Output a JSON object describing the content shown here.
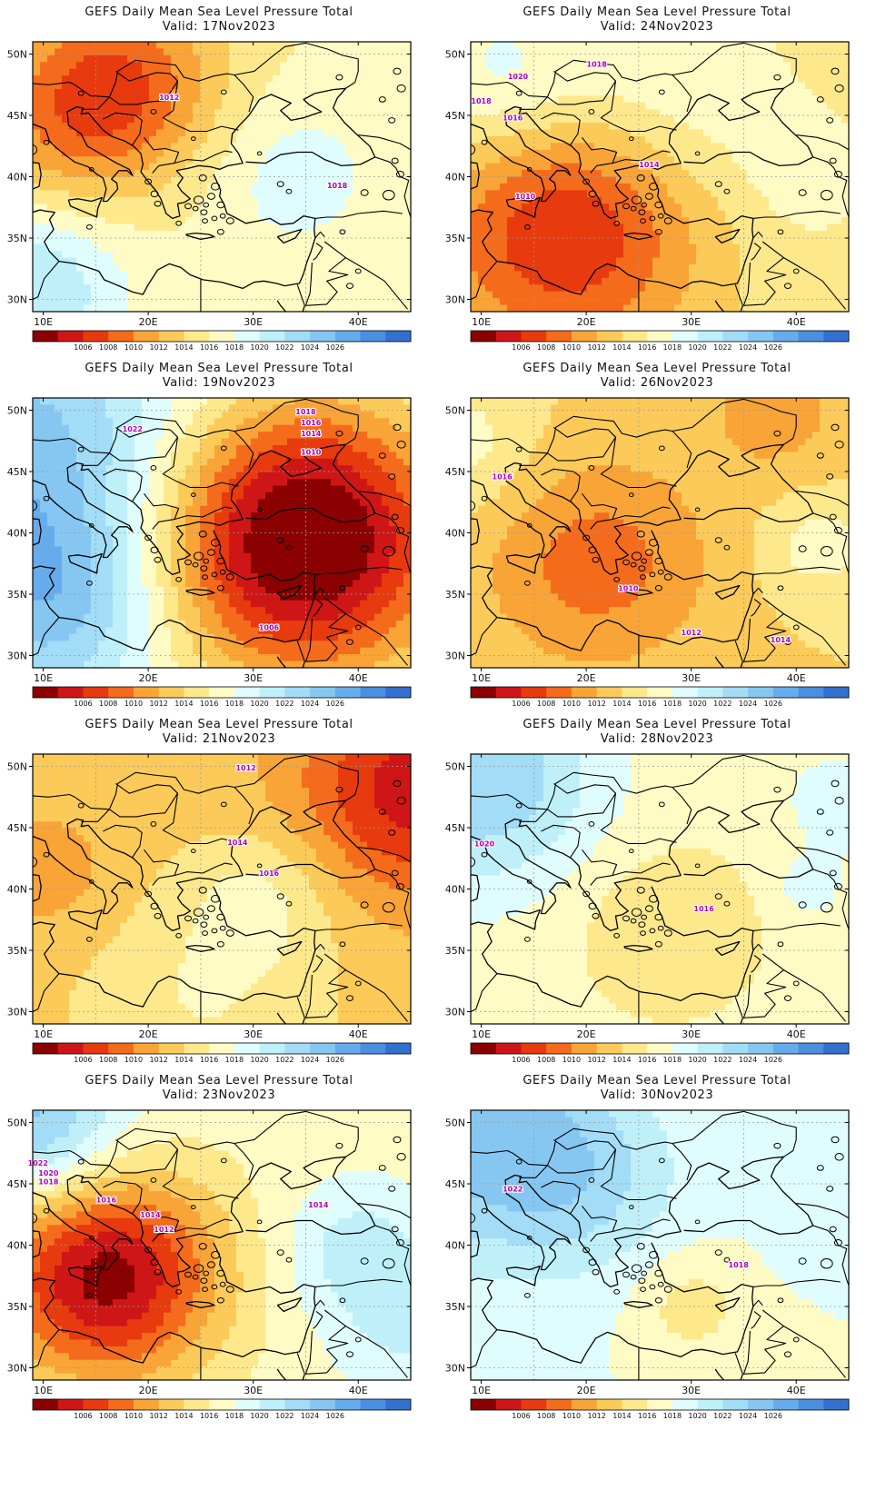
{
  "title": "GEFS Daily Mean Sea Level Pressure Total",
  "colors": {
    "bins": [
      "#8b0000",
      "#cf1616",
      "#e73a0e",
      "#f56b1c",
      "#f9a436",
      "#fbca58",
      "#fde88c",
      "#fffbc4",
      "#e0fdfd",
      "#bff0fa",
      "#a2dcf6",
      "#86c7f2",
      "#66aced",
      "#4a8fe0",
      "#3370d0"
    ],
    "contour": "#b020c0",
    "border": "#000000",
    "grid": "#9a9a9a"
  },
  "colorbar_ticks": [
    "1006",
    "1008",
    "1010",
    "1012",
    "1014",
    "1016",
    "1018",
    "1020",
    "1022",
    "1024",
    "1026"
  ],
  "lon_ticks": [
    "10E",
    "20E",
    "30E",
    "40E"
  ],
  "lat_ticks": [
    "50N",
    "45N",
    "40N",
    "35N",
    "30N"
  ],
  "panels": [
    {
      "valid": "Valid: 17Nov2023",
      "base": 1016,
      "features": [
        {
          "x": 17,
          "y": 47.5,
          "a": -8,
          "r": 5.5
        },
        {
          "x": 11,
          "y": 43.5,
          "a": -3,
          "r": 5
        },
        {
          "x": 9,
          "y": 31,
          "a": 6,
          "r": 5
        },
        {
          "x": 34,
          "y": 40,
          "a": 3,
          "r": 5
        }
      ],
      "labels": [
        {
          "text": "1012",
          "x": 22,
          "y": 46.5
        },
        {
          "text": "1018",
          "x": 38,
          "y": 39.3
        }
      ]
    },
    {
      "valid": "Valid: 24Nov2023",
      "base": 1015,
      "features": [
        {
          "x": 18,
          "y": 35.5,
          "a": -9,
          "r": 7
        },
        {
          "x": 12,
          "y": 48,
          "a": 4,
          "r": 5
        },
        {
          "x": 28,
          "y": 47,
          "a": 3,
          "r": 6
        },
        {
          "x": 41,
          "y": 40,
          "a": 2,
          "r": 4
        }
      ],
      "labels": [
        {
          "text": "1018",
          "x": 21,
          "y": 49.2
        },
        {
          "text": "1020",
          "x": 13.5,
          "y": 48.2
        },
        {
          "text": "1018",
          "x": 10,
          "y": 46.2
        },
        {
          "text": "1016",
          "x": 13,
          "y": 44.8
        },
        {
          "text": "1014",
          "x": 26,
          "y": 41
        },
        {
          "text": "1010",
          "x": 14.2,
          "y": 38.4
        }
      ]
    },
    {
      "valid": "Valid: 19Nov2023",
      "base": 1018,
      "features": [
        {
          "x": 34.5,
          "y": 39.5,
          "a": -18,
          "r": 8
        },
        {
          "x": 8,
          "y": 44,
          "a": 8,
          "r": 10
        },
        {
          "x": 12,
          "y": 34,
          "a": 4,
          "r": 5
        }
      ],
      "labels": [
        {
          "text": "1022",
          "x": 18.5,
          "y": 48.5
        },
        {
          "text": "1018",
          "x": 35,
          "y": 49.9
        },
        {
          "text": "1016",
          "x": 35.5,
          "y": 49
        },
        {
          "text": "1014",
          "x": 35.5,
          "y": 48.1
        },
        {
          "text": "1010",
          "x": 35.5,
          "y": 46.6
        },
        {
          "text": "1006",
          "x": 31.5,
          "y": 32.3
        }
      ]
    },
    {
      "valid": "Valid: 26Nov2023",
      "base": 1014,
      "features": [
        {
          "x": 21,
          "y": 37.5,
          "a": -5,
          "r": 6
        },
        {
          "x": 38,
          "y": 50,
          "a": -3,
          "r": 4
        },
        {
          "x": 8,
          "y": 47,
          "a": 3,
          "r": 4
        },
        {
          "x": 42,
          "y": 39,
          "a": 3,
          "r": 3
        }
      ],
      "labels": [
        {
          "text": "1010",
          "x": 24,
          "y": 35.5
        },
        {
          "text": "1012",
          "x": 30,
          "y": 31.9
        },
        {
          "text": "1014",
          "x": 38.5,
          "y": 31.3
        },
        {
          "text": "1016",
          "x": 12,
          "y": 44.6
        }
      ]
    },
    {
      "valid": "Valid: 21Nov2023",
      "base": 1013,
      "features": [
        {
          "x": 45,
          "y": 48,
          "a": -8,
          "r": 6
        },
        {
          "x": 31,
          "y": 39.5,
          "a": 3,
          "r": 4
        },
        {
          "x": 25,
          "y": 31,
          "a": 3,
          "r": 7
        },
        {
          "x": 11,
          "y": 41,
          "a": -2,
          "r": 4
        }
      ],
      "labels": [
        {
          "text": "1012",
          "x": 29.3,
          "y": 49.9
        },
        {
          "text": "1014",
          "x": 28.5,
          "y": 43.8
        },
        {
          "text": "1016",
          "x": 31.5,
          "y": 41.3
        }
      ]
    },
    {
      "valid": "Valid: 28Nov2023",
      "base": 1017,
      "features": [
        {
          "x": 10,
          "y": 49,
          "a": 7,
          "r": 6
        },
        {
          "x": 28,
          "y": 36.5,
          "a": -3,
          "r": 5
        },
        {
          "x": 44,
          "y": 47,
          "a": 2,
          "r": 3
        },
        {
          "x": 41,
          "y": 40,
          "a": 2,
          "r": 2
        }
      ],
      "labels": [
        {
          "text": "1020",
          "x": 10.3,
          "y": 43.7
        },
        {
          "text": "1016",
          "x": 31.2,
          "y": 38.4
        }
      ]
    },
    {
      "valid": "Valid: 23Nov2023",
      "base": 1017,
      "features": [
        {
          "x": 16,
          "y": 37.5,
          "a": -14,
          "r": 6
        },
        {
          "x": 9,
          "y": 50,
          "a": 8,
          "r": 5
        },
        {
          "x": 40,
          "y": 39.5,
          "a": 4,
          "r": 4
        },
        {
          "x": 45,
          "y": 33,
          "a": 3,
          "r": 4
        }
      ],
      "labels": [
        {
          "text": "1022",
          "x": 9.5,
          "y": 46.7
        },
        {
          "text": "1020",
          "x": 10.5,
          "y": 45.9
        },
        {
          "text": "1018",
          "x": 10.5,
          "y": 45.2
        },
        {
          "text": "1016",
          "x": 16,
          "y": 43.7
        },
        {
          "text": "1014",
          "x": 20.2,
          "y": 42.5
        },
        {
          "text": "1012",
          "x": 21.5,
          "y": 41.3
        },
        {
          "text": "1014",
          "x": 36.2,
          "y": 43.3
        }
      ]
    },
    {
      "valid": "Valid: 30Nov2023",
      "base": 1018,
      "features": [
        {
          "x": 10,
          "y": 49,
          "a": 7,
          "r": 7
        },
        {
          "x": 20,
          "y": 45,
          "a": 3,
          "r": 5
        },
        {
          "x": 30,
          "y": 35,
          "a": -3,
          "r": 3
        },
        {
          "x": 41,
          "y": 41,
          "a": 1.5,
          "r": 2
        }
      ],
      "labels": [
        {
          "text": "1022",
          "x": 13,
          "y": 44.6
        },
        {
          "text": "1018",
          "x": 34.5,
          "y": 38.4
        }
      ]
    }
  ]
}
